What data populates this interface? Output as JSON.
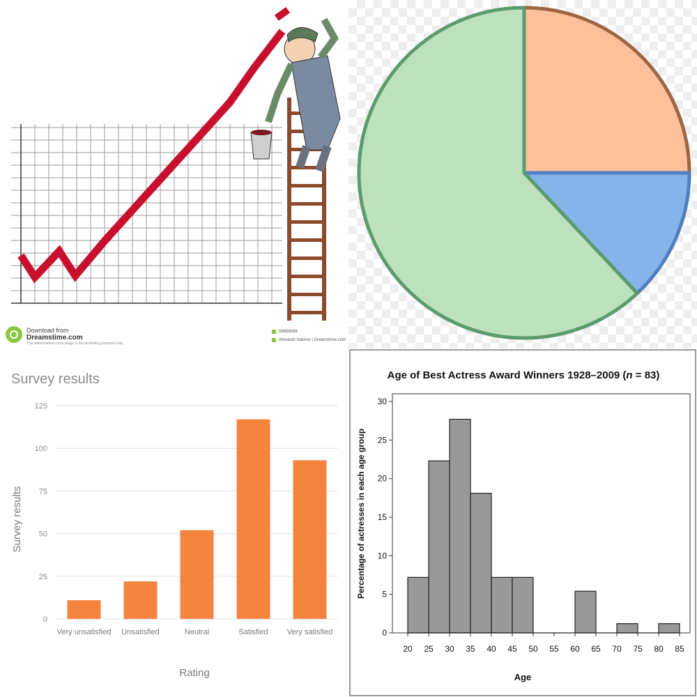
{
  "watermark": {
    "line1": "Download from",
    "line2": "Dreamstime.com",
    "line3": "This watermarked comp image is for previewing purposes only.",
    "image_id": "59658066",
    "author": "Alexandr Sidorov | Dreamstime.com"
  },
  "colors": {
    "trend_line": "#c8102e",
    "pie_orange": "#fdc09a",
    "pie_orange_stroke": "#9c6644",
    "pie_blue": "#86b4ea",
    "pie_blue_stroke": "#4f7fbf",
    "pie_green": "#bde0be",
    "pie_green_stroke": "#5c9b6d",
    "bar_orange": "#f5843e",
    "hist_bar": "#999999"
  },
  "chart_data": [
    {
      "type": "line",
      "title": "",
      "xlabel": "",
      "ylabel": "",
      "grid": true,
      "series": [
        {
          "values": [
            3.3,
            1.8,
            3.6,
            1.9,
            4.3,
            6.7,
            9.1,
            11.5,
            13.9,
            16.3,
            18.8
          ]
        }
      ],
      "ylim": [
        0,
        20
      ]
    },
    {
      "type": "pie",
      "title": "",
      "values": [
        25,
        13,
        62
      ],
      "colors": [
        "#fdc09a",
        "#86b4ea",
        "#bde0be"
      ]
    },
    {
      "type": "bar",
      "title": "Survey results",
      "xlabel": "Rating",
      "ylabel": "Survey results",
      "categories": [
        "Very unsatisfied",
        "Unsatisfied",
        "Neutral",
        "Satisfied",
        "Very satisfied"
      ],
      "values": [
        11,
        22,
        52,
        117,
        93
      ],
      "ylim": [
        0,
        125
      ],
      "yticks": [
        "0",
        "25",
        "50",
        "75",
        "100",
        "125"
      ],
      "grid": true
    },
    {
      "type": "bar",
      "title": "Age of Best Actress Award Winners 1928–2009 (",
      "title_n": "n",
      "title_suffix": " = 83)",
      "xlabel": "Age",
      "ylabel": "Percentage of actresses in each age group",
      "bin_edges": [
        20,
        25,
        30,
        35,
        40,
        45,
        50,
        55,
        60,
        65,
        70,
        75,
        80,
        85
      ],
      "values": [
        7.2,
        22.3,
        27.7,
        18.1,
        7.2,
        7.2,
        0,
        0,
        5.4,
        0,
        1.2,
        0,
        1.2
      ],
      "xticks": [
        "20",
        "25",
        "30",
        "35",
        "40",
        "45",
        "50",
        "55",
        "60",
        "65",
        "70",
        "75",
        "80",
        "85"
      ],
      "yticks": [
        "0",
        "5",
        "10",
        "15",
        "20",
        "25",
        "30"
      ],
      "ylim": [
        0,
        31
      ]
    }
  ]
}
